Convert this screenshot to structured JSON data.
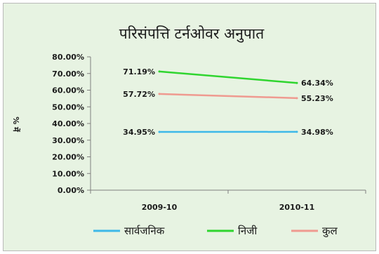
{
  "chart_data": {
    "type": "line",
    "title": "परिसंपत्ति टर्नओवर अनुपात",
    "ylabel": "% में",
    "xlabel": "",
    "categories": [
      "2009-10",
      "2010-11"
    ],
    "ylim": [
      0,
      80
    ],
    "yticks": [
      0,
      10,
      20,
      30,
      40,
      50,
      60,
      70,
      80
    ],
    "ytick_labels": [
      "0.00%",
      "10.00%",
      "20.00%",
      "30.00%",
      "40.00%",
      "50.00%",
      "60.00%",
      "70.00%",
      "80.00%"
    ],
    "grid": false,
    "legend_position": "bottom",
    "series": [
      {
        "name": "सार्वजनिक",
        "color": "#3db8e8",
        "values": [
          34.95,
          34.98
        ],
        "labels": [
          "34.95%",
          "34.98%"
        ]
      },
      {
        "name": "निजी",
        "color": "#2fd52f",
        "values": [
          71.19,
          64.34
        ],
        "labels": [
          "71.19%",
          "64.34%"
        ]
      },
      {
        "name": "कुल",
        "color": "#ef9a90",
        "values": [
          57.72,
          55.23
        ],
        "labels": [
          "57.72%",
          "55.23%"
        ]
      }
    ]
  }
}
